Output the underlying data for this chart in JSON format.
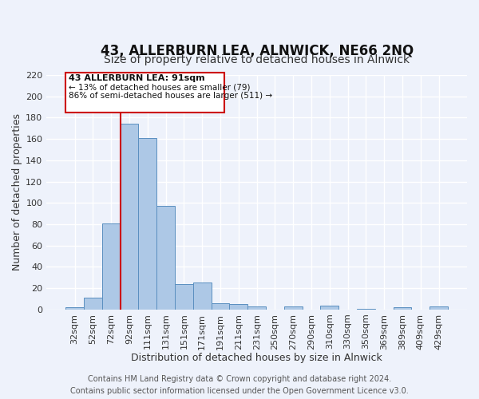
{
  "title": "43, ALLERBURN LEA, ALNWICK, NE66 2NQ",
  "subtitle": "Size of property relative to detached houses in Alnwick",
  "xlabel": "Distribution of detached houses by size in Alnwick",
  "ylabel": "Number of detached properties",
  "categories": [
    "32sqm",
    "52sqm",
    "72sqm",
    "92sqm",
    "111sqm",
    "131sqm",
    "151sqm",
    "171sqm",
    "191sqm",
    "211sqm",
    "231sqm",
    "250sqm",
    "270sqm",
    "290sqm",
    "310sqm",
    "330sqm",
    "350sqm",
    "369sqm",
    "389sqm",
    "409sqm",
    "429sqm"
  ],
  "values": [
    2,
    11,
    81,
    174,
    161,
    97,
    24,
    25,
    6,
    5,
    3,
    0,
    3,
    0,
    4,
    0,
    1,
    0,
    2,
    0,
    3
  ],
  "bar_color": "#adc8e6",
  "bar_edge_color": "#5a8fc0",
  "vline_color": "#cc0000",
  "vline_x_index": 3,
  "ylim": [
    0,
    220
  ],
  "yticks": [
    0,
    20,
    40,
    60,
    80,
    100,
    120,
    140,
    160,
    180,
    200,
    220
  ],
  "annotation_box_text_line1": "43 ALLERBURN LEA: 91sqm",
  "annotation_box_text_line2": "← 13% of detached houses are smaller (79)",
  "annotation_box_text_line3": "86% of semi-detached houses are larger (511) →",
  "annotation_box_color": "#cc0000",
  "footer_line1": "Contains HM Land Registry data © Crown copyright and database right 2024.",
  "footer_line2": "Contains public sector information licensed under the Open Government Licence v3.0.",
  "background_color": "#eef2fb",
  "grid_color": "#ffffff",
  "title_fontsize": 12,
  "subtitle_fontsize": 10,
  "xlabel_fontsize": 9,
  "ylabel_fontsize": 9,
  "tick_fontsize": 8,
  "footer_fontsize": 7
}
